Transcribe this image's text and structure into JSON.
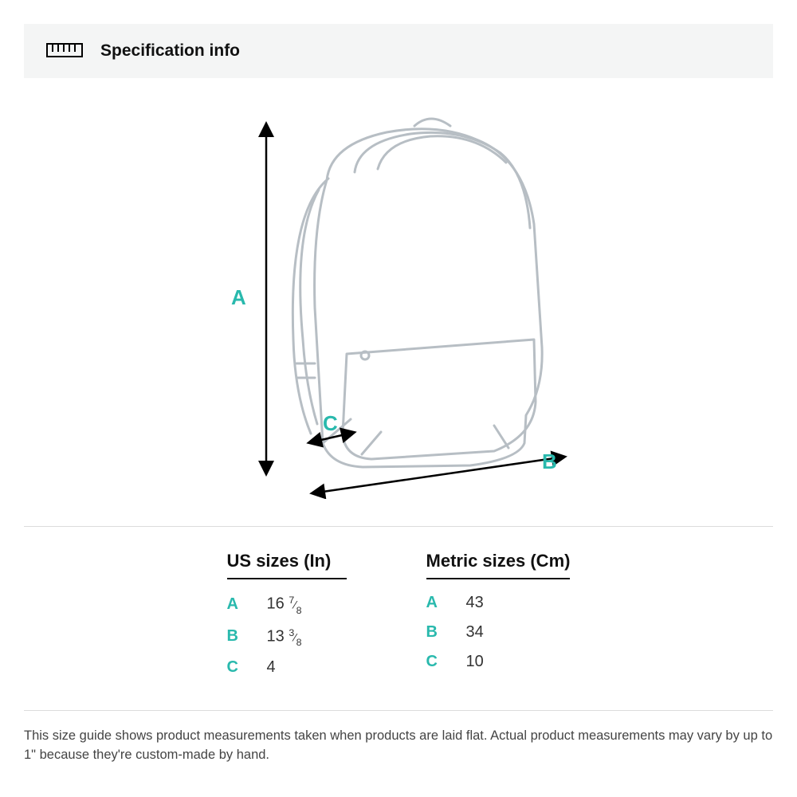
{
  "header": {
    "title": "Specification info",
    "icon_stroke": "#000000",
    "bg": "#f4f5f5"
  },
  "diagram": {
    "stroke_color": "#b7bec4",
    "arrow_color": "#000000",
    "accent_color": "#29b9ad",
    "labels": {
      "a": "A",
      "b": "B",
      "c": "C"
    }
  },
  "tables": {
    "us": {
      "title": "US sizes (In)",
      "rows": [
        {
          "key": "A",
          "int": "16",
          "num": "7",
          "den": "8"
        },
        {
          "key": "B",
          "int": "13",
          "num": "3",
          "den": "8"
        },
        {
          "key": "C",
          "int": "4",
          "num": "",
          "den": ""
        }
      ]
    },
    "metric": {
      "title": "Metric sizes (Cm)",
      "rows": [
        {
          "key": "A",
          "val": "43"
        },
        {
          "key": "B",
          "val": "34"
        },
        {
          "key": "C",
          "val": "10"
        }
      ]
    }
  },
  "footnote": "This size guide shows product measurements taken when products are laid flat. Actual product measurements may vary by up to 1\" because they're custom-made by hand.",
  "colors": {
    "text": "#111111",
    "muted": "#444444",
    "divider": "#dcdcdc",
    "accent": "#29b9ad"
  }
}
